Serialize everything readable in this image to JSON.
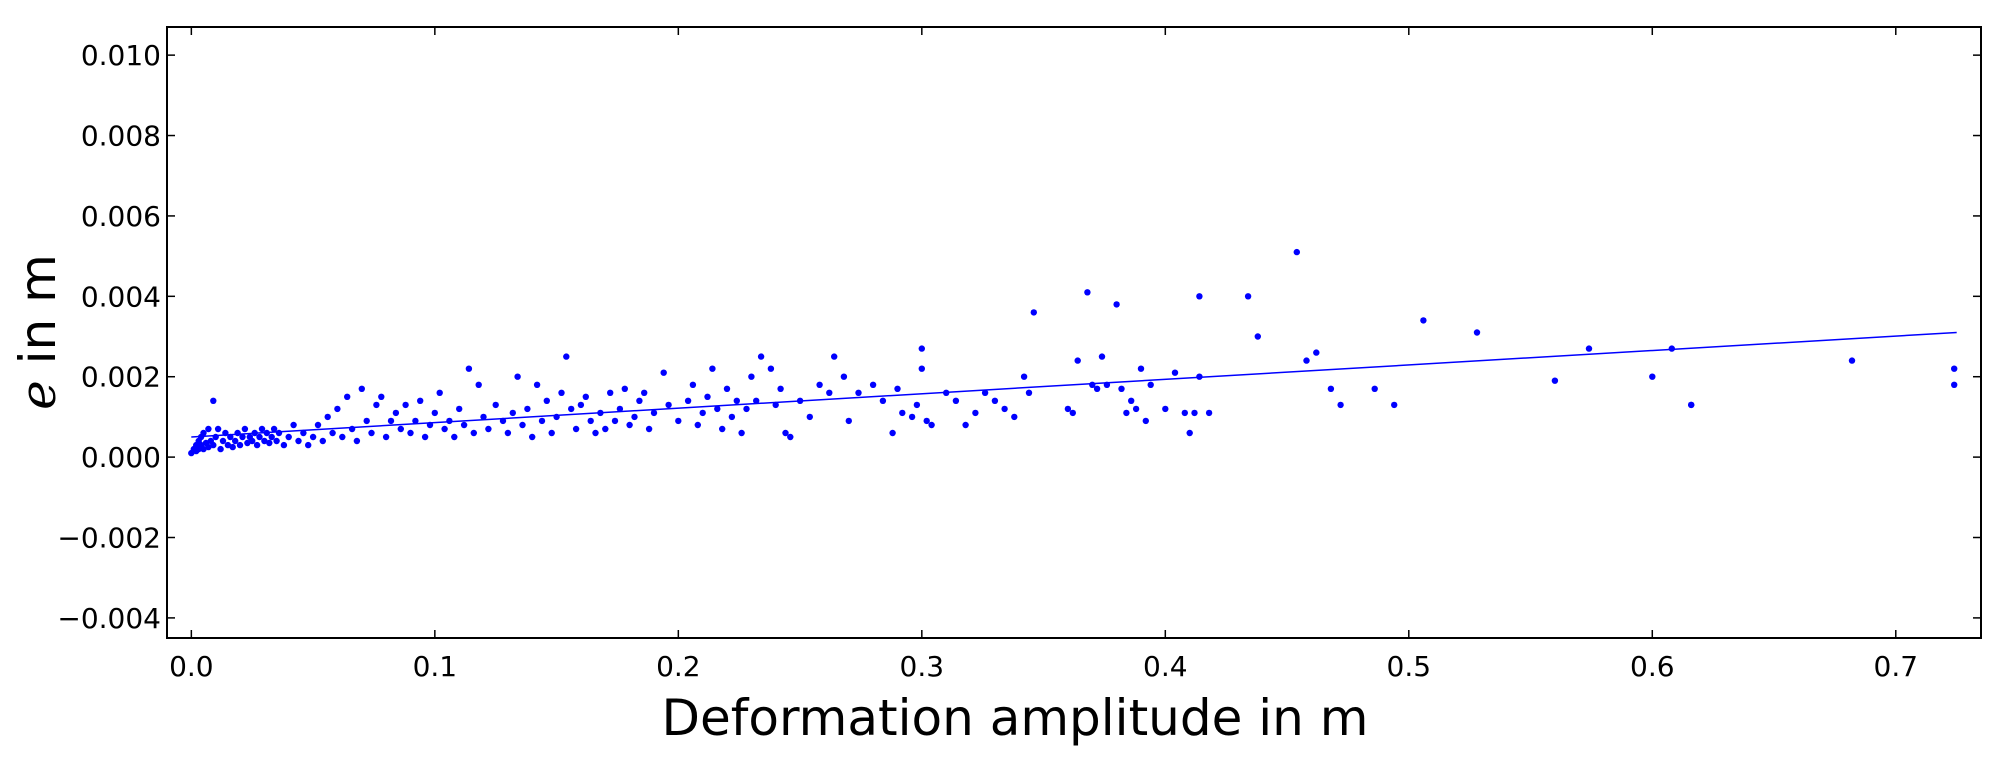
{
  "colors": {
    "series": "#0000ff",
    "axes": "#000000",
    "background": "#ffffff"
  },
  "chart_data": {
    "type": "scatter",
    "title": "",
    "xlabel": "Deformation amplitude in m",
    "ylabel": {
      "symbol": "e",
      "text": " in m"
    },
    "xlim": [
      -0.01,
      0.735
    ],
    "ylim": [
      -0.0045,
      0.0107
    ],
    "xticks": [
      0.0,
      0.1,
      0.2,
      0.3,
      0.4,
      0.5,
      0.6,
      0.7
    ],
    "xtick_labels": [
      "0.0",
      "0.1",
      "0.2",
      "0.3",
      "0.4",
      "0.5",
      "0.6",
      "0.7"
    ],
    "yticks": [
      -0.004,
      -0.002,
      0.0,
      0.002,
      0.004,
      0.006,
      0.008,
      0.01
    ],
    "ytick_labels": [
      "−0.004",
      "−0.002",
      "0.000",
      "0.002",
      "0.004",
      "0.006",
      "0.008",
      "0.010"
    ],
    "grid": false,
    "legend": "none",
    "series": [
      {
        "type": "scatter",
        "color": "#0000ff",
        "points": [
          [
            0.0,
            0.0001
          ],
          [
            0.001,
            0.0002
          ],
          [
            0.002,
            0.0003
          ],
          [
            0.002,
            0.00015
          ],
          [
            0.003,
            0.0004
          ],
          [
            0.003,
            0.0002
          ],
          [
            0.004,
            0.0005
          ],
          [
            0.004,
            0.0003
          ],
          [
            0.005,
            0.0006
          ],
          [
            0.005,
            0.0002
          ],
          [
            0.006,
            0.00035
          ],
          [
            0.007,
            0.0007
          ],
          [
            0.007,
            0.00025
          ],
          [
            0.008,
            0.0004
          ],
          [
            0.009,
            0.0014
          ],
          [
            0.009,
            0.0003
          ],
          [
            0.01,
            0.0005
          ],
          [
            0.011,
            0.0007
          ],
          [
            0.012,
            0.0002
          ],
          [
            0.013,
            0.0004
          ],
          [
            0.014,
            0.0006
          ],
          [
            0.015,
            0.0003
          ],
          [
            0.016,
            0.0005
          ],
          [
            0.017,
            0.00025
          ],
          [
            0.018,
            0.0004
          ],
          [
            0.019,
            0.0006
          ],
          [
            0.02,
            0.0003
          ],
          [
            0.021,
            0.0005
          ],
          [
            0.022,
            0.0007
          ],
          [
            0.023,
            0.00035
          ],
          [
            0.024,
            0.0005
          ],
          [
            0.025,
            0.0004
          ],
          [
            0.026,
            0.0006
          ],
          [
            0.027,
            0.0003
          ],
          [
            0.028,
            0.0005
          ],
          [
            0.029,
            0.0007
          ],
          [
            0.03,
            0.0004
          ],
          [
            0.031,
            0.0006
          ],
          [
            0.032,
            0.00035
          ],
          [
            0.033,
            0.0005
          ],
          [
            0.034,
            0.0007
          ],
          [
            0.035,
            0.0004
          ],
          [
            0.036,
            0.0006
          ],
          [
            0.038,
            0.0003
          ],
          [
            0.04,
            0.0005
          ],
          [
            0.042,
            0.0008
          ],
          [
            0.044,
            0.0004
          ],
          [
            0.046,
            0.0006
          ],
          [
            0.048,
            0.0003
          ],
          [
            0.05,
            0.0005
          ],
          [
            0.052,
            0.0008
          ],
          [
            0.054,
            0.0004
          ],
          [
            0.056,
            0.001
          ],
          [
            0.058,
            0.0006
          ],
          [
            0.06,
            0.0012
          ],
          [
            0.062,
            0.0005
          ],
          [
            0.064,
            0.0015
          ],
          [
            0.066,
            0.0007
          ],
          [
            0.068,
            0.0004
          ],
          [
            0.07,
            0.0017
          ],
          [
            0.072,
            0.0009
          ],
          [
            0.074,
            0.0006
          ],
          [
            0.076,
            0.0013
          ],
          [
            0.078,
            0.0015
          ],
          [
            0.08,
            0.0005
          ],
          [
            0.082,
            0.0009
          ],
          [
            0.084,
            0.0011
          ],
          [
            0.086,
            0.0007
          ],
          [
            0.088,
            0.0013
          ],
          [
            0.09,
            0.0006
          ],
          [
            0.092,
            0.0009
          ],
          [
            0.094,
            0.0014
          ],
          [
            0.096,
            0.0005
          ],
          [
            0.098,
            0.0008
          ],
          [
            0.1,
            0.0011
          ],
          [
            0.102,
            0.0016
          ],
          [
            0.104,
            0.0007
          ],
          [
            0.106,
            0.0009
          ],
          [
            0.108,
            0.0005
          ],
          [
            0.11,
            0.0012
          ],
          [
            0.112,
            0.0008
          ],
          [
            0.114,
            0.0022
          ],
          [
            0.116,
            0.0006
          ],
          [
            0.118,
            0.0018
          ],
          [
            0.12,
            0.001
          ],
          [
            0.122,
            0.0007
          ],
          [
            0.125,
            0.0013
          ],
          [
            0.128,
            0.0009
          ],
          [
            0.13,
            0.0006
          ],
          [
            0.132,
            0.0011
          ],
          [
            0.134,
            0.002
          ],
          [
            0.136,
            0.0008
          ],
          [
            0.138,
            0.0012
          ],
          [
            0.14,
            0.0005
          ],
          [
            0.142,
            0.0018
          ],
          [
            0.144,
            0.0009
          ],
          [
            0.146,
            0.0014
          ],
          [
            0.148,
            0.0006
          ],
          [
            0.15,
            0.001
          ],
          [
            0.152,
            0.0016
          ],
          [
            0.154,
            0.0025
          ],
          [
            0.156,
            0.0012
          ],
          [
            0.158,
            0.0007
          ],
          [
            0.16,
            0.0013
          ],
          [
            0.162,
            0.0015
          ],
          [
            0.164,
            0.0009
          ],
          [
            0.166,
            0.0006
          ],
          [
            0.168,
            0.0011
          ],
          [
            0.17,
            0.0007
          ],
          [
            0.172,
            0.0016
          ],
          [
            0.174,
            0.0009
          ],
          [
            0.176,
            0.0012
          ],
          [
            0.178,
            0.0017
          ],
          [
            0.18,
            0.0008
          ],
          [
            0.182,
            0.001
          ],
          [
            0.184,
            0.0014
          ],
          [
            0.186,
            0.0016
          ],
          [
            0.188,
            0.0007
          ],
          [
            0.19,
            0.0011
          ],
          [
            0.194,
            0.0021
          ],
          [
            0.196,
            0.0013
          ],
          [
            0.2,
            0.0009
          ],
          [
            0.204,
            0.0014
          ],
          [
            0.206,
            0.0018
          ],
          [
            0.208,
            0.0008
          ],
          [
            0.21,
            0.0011
          ],
          [
            0.212,
            0.0015
          ],
          [
            0.214,
            0.0022
          ],
          [
            0.216,
            0.0012
          ],
          [
            0.218,
            0.0007
          ],
          [
            0.22,
            0.0017
          ],
          [
            0.222,
            0.001
          ],
          [
            0.224,
            0.0014
          ],
          [
            0.226,
            0.0006
          ],
          [
            0.228,
            0.0012
          ],
          [
            0.23,
            0.002
          ],
          [
            0.232,
            0.0014
          ],
          [
            0.234,
            0.0025
          ],
          [
            0.238,
            0.0022
          ],
          [
            0.24,
            0.0013
          ],
          [
            0.242,
            0.0017
          ],
          [
            0.244,
            0.0006
          ],
          [
            0.246,
            0.0005
          ],
          [
            0.25,
            0.0014
          ],
          [
            0.254,
            0.001
          ],
          [
            0.258,
            0.0018
          ],
          [
            0.262,
            0.0016
          ],
          [
            0.264,
            0.0025
          ],
          [
            0.268,
            0.002
          ],
          [
            0.27,
            0.0009
          ],
          [
            0.274,
            0.0016
          ],
          [
            0.28,
            0.0018
          ],
          [
            0.284,
            0.0014
          ],
          [
            0.288,
            0.0006
          ],
          [
            0.29,
            0.0017
          ],
          [
            0.292,
            0.0011
          ],
          [
            0.296,
            0.001
          ],
          [
            0.298,
            0.0013
          ],
          [
            0.3,
            0.0027
          ],
          [
            0.3,
            0.0022
          ],
          [
            0.302,
            0.0009
          ],
          [
            0.304,
            0.0008
          ],
          [
            0.31,
            0.0016
          ],
          [
            0.314,
            0.0014
          ],
          [
            0.318,
            0.0008
          ],
          [
            0.322,
            0.0011
          ],
          [
            0.326,
            0.0016
          ],
          [
            0.33,
            0.0014
          ],
          [
            0.334,
            0.0012
          ],
          [
            0.338,
            0.001
          ],
          [
            0.342,
            0.002
          ],
          [
            0.344,
            0.0016
          ],
          [
            0.346,
            0.0036
          ],
          [
            0.36,
            0.0012
          ],
          [
            0.362,
            0.0011
          ],
          [
            0.364,
            0.0024
          ],
          [
            0.368,
            0.0041
          ],
          [
            0.37,
            0.0018
          ],
          [
            0.372,
            0.0017
          ],
          [
            0.374,
            0.0025
          ],
          [
            0.376,
            0.0018
          ],
          [
            0.38,
            0.0038
          ],
          [
            0.382,
            0.0017
          ],
          [
            0.384,
            0.0011
          ],
          [
            0.386,
            0.0014
          ],
          [
            0.388,
            0.0012
          ],
          [
            0.39,
            0.0022
          ],
          [
            0.392,
            0.0009
          ],
          [
            0.394,
            0.0018
          ],
          [
            0.4,
            0.0012
          ],
          [
            0.404,
            0.0021
          ],
          [
            0.408,
            0.0011
          ],
          [
            0.41,
            0.0006
          ],
          [
            0.412,
            0.0011
          ],
          [
            0.414,
            0.002
          ],
          [
            0.414,
            0.004
          ],
          [
            0.418,
            0.0011
          ],
          [
            0.434,
            0.004
          ],
          [
            0.438,
            0.003
          ],
          [
            0.454,
            0.0051
          ],
          [
            0.458,
            0.0024
          ],
          [
            0.462,
            0.0026
          ],
          [
            0.468,
            0.0017
          ],
          [
            0.472,
            0.0013
          ],
          [
            0.486,
            0.0017
          ],
          [
            0.494,
            0.0013
          ],
          [
            0.506,
            0.0034
          ],
          [
            0.528,
            0.0031
          ],
          [
            0.56,
            0.0019
          ],
          [
            0.574,
            0.0027
          ],
          [
            0.6,
            0.002
          ],
          [
            0.608,
            0.0027
          ],
          [
            0.616,
            0.0013
          ],
          [
            0.616,
            0.0013
          ],
          [
            0.682,
            0.0024
          ],
          [
            0.724,
            0.0022
          ],
          [
            0.724,
            0.0018
          ]
        ]
      },
      {
        "type": "line",
        "color": "#0000ff",
        "points": [
          [
            0.0,
            0.0005
          ],
          [
            0.725,
            0.0031
          ]
        ]
      }
    ]
  }
}
